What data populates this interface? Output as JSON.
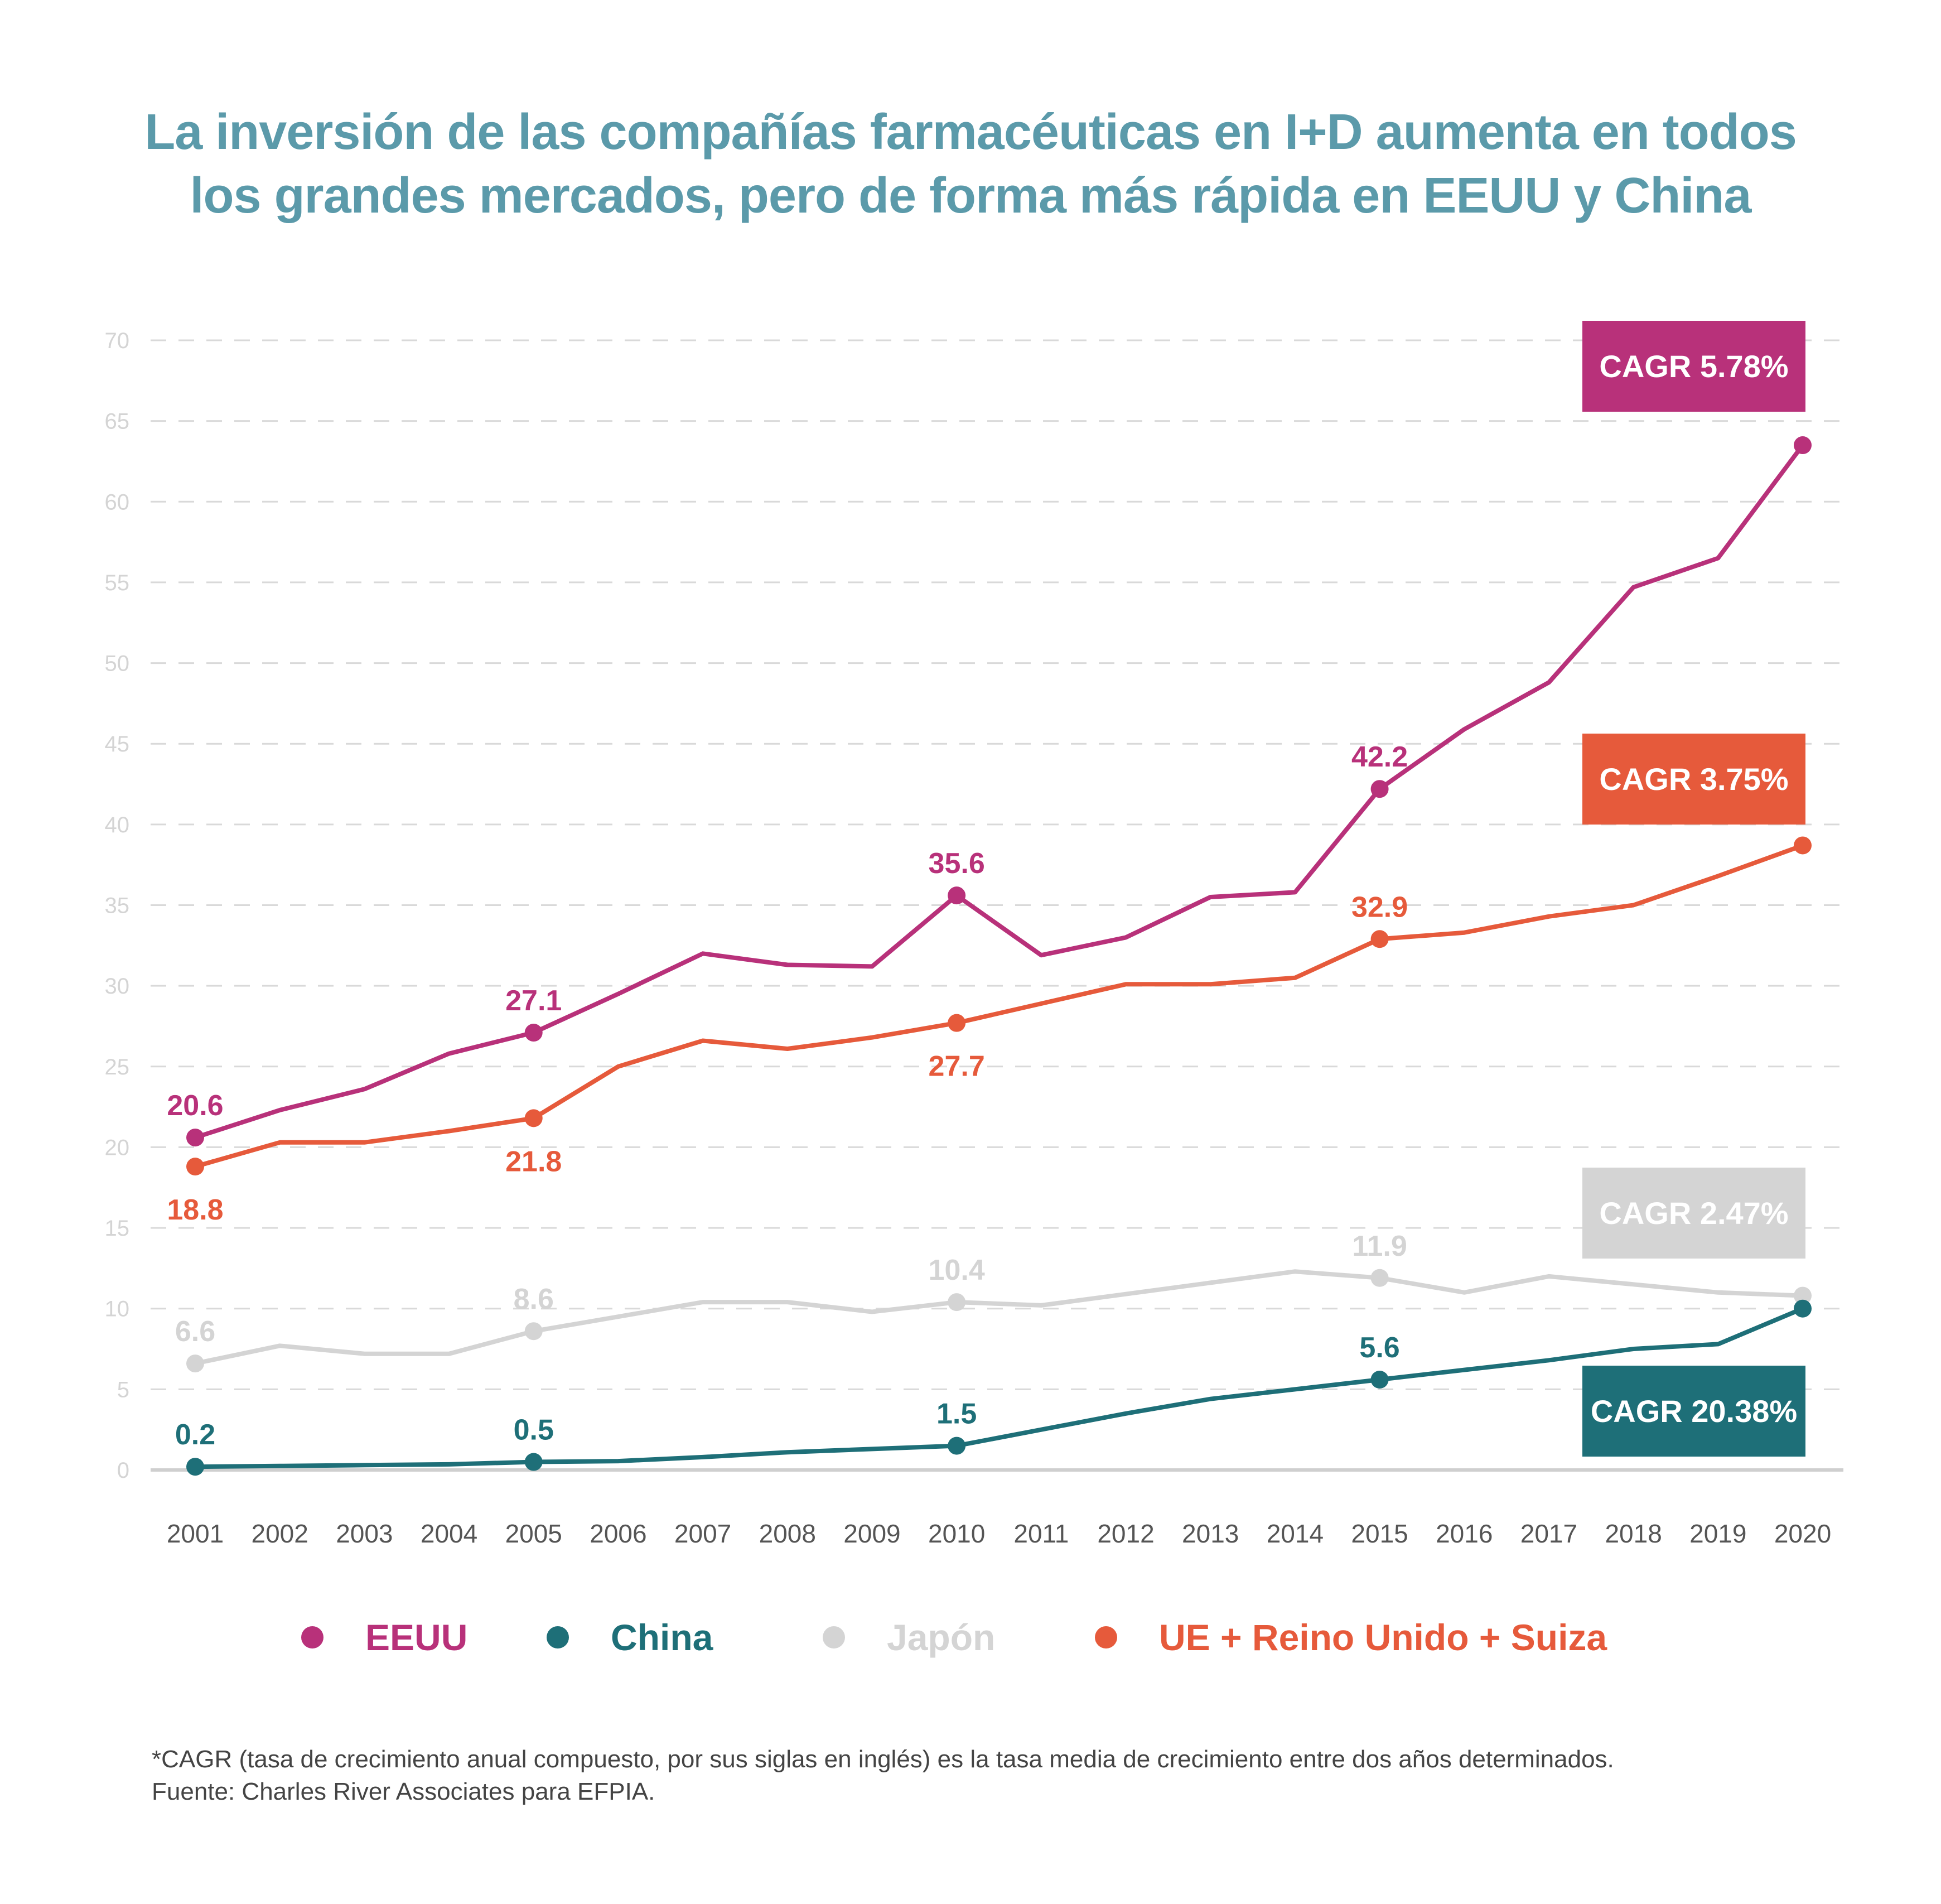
{
  "title_lines": [
    "La inversión de las compañías farmacéuticas en I+D aumenta en todos",
    "los grandes mercados, pero de forma más rápida en EEUU y China"
  ],
  "footnote": [
    "*CAGR (tasa de crecimiento anual compuesto, por sus siglas en inglés) es la tasa media de crecimiento entre dos años determinados.",
    "Fuente: Charles River Associates para EFPIA."
  ],
  "chart_data": {
    "type": "line",
    "x": [
      2001,
      2002,
      2003,
      2004,
      2005,
      2006,
      2007,
      2008,
      2009,
      2010,
      2011,
      2012,
      2013,
      2014,
      2015,
      2016,
      2017,
      2018,
      2019,
      2020
    ],
    "x_tick_labels": [
      "2001",
      "2002",
      "2003",
      "2004",
      "2005",
      "2006",
      "2007",
      "2008",
      "2009",
      "2010",
      "2011",
      "2012",
      "2013",
      "2014",
      "2015",
      "2016",
      "2017",
      "2018",
      "2019",
      "2020"
    ],
    "y_ticks": [
      0,
      5,
      10,
      15,
      20,
      25,
      30,
      35,
      40,
      45,
      50,
      55,
      60,
      65,
      70
    ],
    "y_tick_labels": [
      "0",
      "5",
      "10",
      "15",
      "20",
      "25",
      "30",
      "35",
      "40",
      "45",
      "50",
      "55",
      "60",
      "65",
      "70"
    ],
    "ylim": [
      0,
      70
    ],
    "grid": "horizontal dashed",
    "legend_position": "bottom",
    "series": [
      {
        "name": "EEUU",
        "color": "#b8317a",
        "values": [
          20.6,
          22.3,
          23.6,
          25.8,
          27.1,
          29.5,
          32.0,
          31.3,
          31.2,
          35.6,
          31.9,
          33.0,
          35.5,
          35.8,
          42.2,
          45.9,
          48.8,
          54.7,
          56.5,
          63.5
        ],
        "markers": [
          {
            "x": 2001,
            "label": "20.6"
          },
          {
            "x": 2005,
            "label": "27.1"
          },
          {
            "x": 2010,
            "label": "35.6"
          },
          {
            "x": 2015,
            "label": "42.2"
          },
          {
            "x": 2020,
            "label": ""
          }
        ],
        "cagr": "CAGR 5.78%"
      },
      {
        "name": "China",
        "color": "#1e6f78",
        "values": [
          0.2,
          0.25,
          0.3,
          0.35,
          0.5,
          0.55,
          0.8,
          1.1,
          1.3,
          1.5,
          2.5,
          3.5,
          4.4,
          5.0,
          5.6,
          6.2,
          6.8,
          7.5,
          7.8,
          10.0
        ],
        "markers": [
          {
            "x": 2001,
            "label": "0.2"
          },
          {
            "x": 2005,
            "label": "0.5"
          },
          {
            "x": 2010,
            "label": "1.5"
          },
          {
            "x": 2015,
            "label": "5.6"
          },
          {
            "x": 2020,
            "label": ""
          }
        ],
        "cagr": "CAGR 20.38%"
      },
      {
        "name": "Japón",
        "color": "#d4d4d4",
        "values": [
          6.6,
          7.7,
          7.2,
          7.2,
          8.6,
          9.5,
          10.4,
          10.4,
          9.8,
          10.4,
          10.2,
          10.9,
          11.6,
          12.3,
          11.9,
          11.0,
          12.0,
          11.5,
          11.0,
          10.8
        ],
        "markers": [
          {
            "x": 2001,
            "label": "6.6"
          },
          {
            "x": 2005,
            "label": "8.6"
          },
          {
            "x": 2010,
            "label": "10.4"
          },
          {
            "x": 2015,
            "label": "11.9"
          },
          {
            "x": 2020,
            "label": ""
          }
        ],
        "cagr": "CAGR 2.47%"
      },
      {
        "name": "UE + Reino Unido + Suiza",
        "color": "#e65a3b",
        "values": [
          18.8,
          20.3,
          20.3,
          21.0,
          21.8,
          25.0,
          26.6,
          26.1,
          26.8,
          27.7,
          28.9,
          30.1,
          30.1,
          30.5,
          32.9,
          33.3,
          34.3,
          35.0,
          36.8,
          38.7
        ],
        "markers": [
          {
            "x": 2001,
            "label": "18.8"
          },
          {
            "x": 2005,
            "label": "21.8"
          },
          {
            "x": 2010,
            "label": "27.7"
          },
          {
            "x": 2015,
            "label": "32.9"
          },
          {
            "x": 2020,
            "label": ""
          }
        ],
        "cagr": "CAGR 3.75%"
      }
    ]
  }
}
